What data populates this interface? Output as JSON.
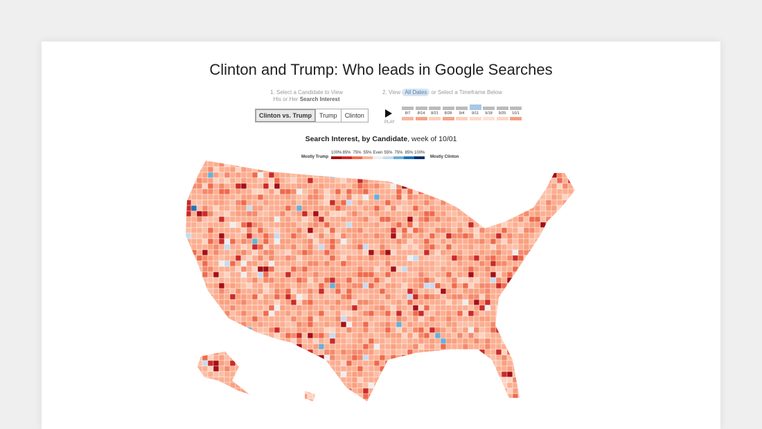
{
  "header": {
    "title": "Clinton and Trump: Who leads in Google Searches"
  },
  "step1": {
    "line1": "1. Select a Candidate to View",
    "line2": "His or Her",
    "line2_bold": "Search Interest",
    "buttons": [
      "Clinton vs. Trump",
      "Trump",
      "Clinton"
    ]
  },
  "step2": {
    "label": "2. View",
    "all_dates": "All Dates",
    "rest": "or Select a Timeframe Below",
    "play": "PLAY",
    "dates": [
      "8/7",
      "8/14",
      "8/21",
      "8/28",
      "9/4",
      "9/11",
      "9/18",
      "9/25",
      "10/1"
    ]
  },
  "map": {
    "title_bold": "Search Interest, by Candidate",
    "title_rest": ", week of 10/01",
    "legend_left": "Mostly Trump",
    "legend_right": "Mostly Clinton",
    "legend": [
      {
        "label": "100%",
        "color": "#a50f15"
      },
      {
        "label": "85%",
        "color": "#cb2a28"
      },
      {
        "label": "75%",
        "color": "#ef6a4c"
      },
      {
        "label": "55%",
        "color": "#fcae91"
      },
      {
        "label": "Even",
        "color": "#eeeeee"
      },
      {
        "label": "55%",
        "color": "#c6dbef"
      },
      {
        "label": "75%",
        "color": "#6baed6"
      },
      {
        "label": "85%",
        "color": "#2171b5"
      },
      {
        "label": "100%",
        "color": "#08306b"
      }
    ]
  }
}
